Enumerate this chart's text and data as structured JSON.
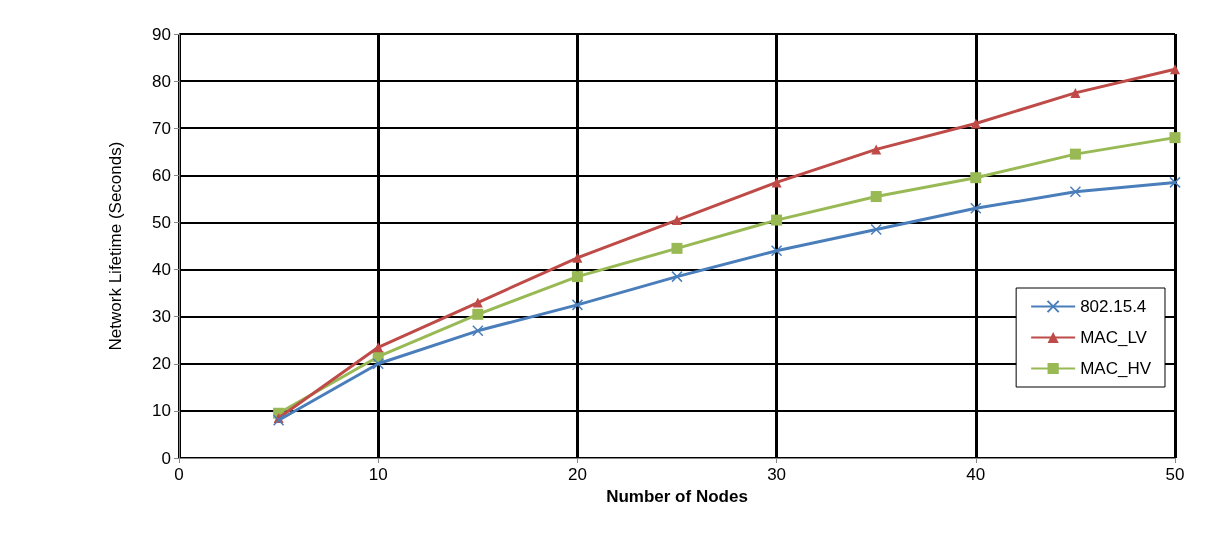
{
  "chart_data": {
    "type": "line",
    "xlabel": "Number of Nodes",
    "ylabel": "Network Lifetime (Seconds)",
    "x": [
      5,
      10,
      15,
      20,
      25,
      30,
      35,
      40,
      45,
      50
    ],
    "series": [
      {
        "name": "802.15.4",
        "color": "#4a7ebb",
        "marker": "cross",
        "values": [
          8,
          20,
          27,
          32.5,
          38.5,
          44,
          48.5,
          53,
          56.5,
          58.5
        ]
      },
      {
        "name": "MAC_LV",
        "color": "#be4b48",
        "marker": "triangle",
        "values": [
          8.5,
          23.5,
          33,
          42.5,
          50.5,
          58.5,
          65.5,
          71,
          77.5,
          82.5
        ]
      },
      {
        "name": "MAC_HV",
        "color": "#98b954",
        "marker": "square",
        "values": [
          9.5,
          21.5,
          30.5,
          38.5,
          44.5,
          50.5,
          55.5,
          59.5,
          64.5,
          68
        ]
      }
    ],
    "xlim": [
      0,
      50
    ],
    "xticks": [
      0,
      10,
      20,
      30,
      40,
      50
    ],
    "ylim": [
      0,
      90
    ],
    "yticks": [
      0,
      10,
      20,
      30,
      40,
      50,
      60,
      70,
      80,
      90
    ],
    "grid": true,
    "legend": "right",
    "line_style": "solid"
  }
}
